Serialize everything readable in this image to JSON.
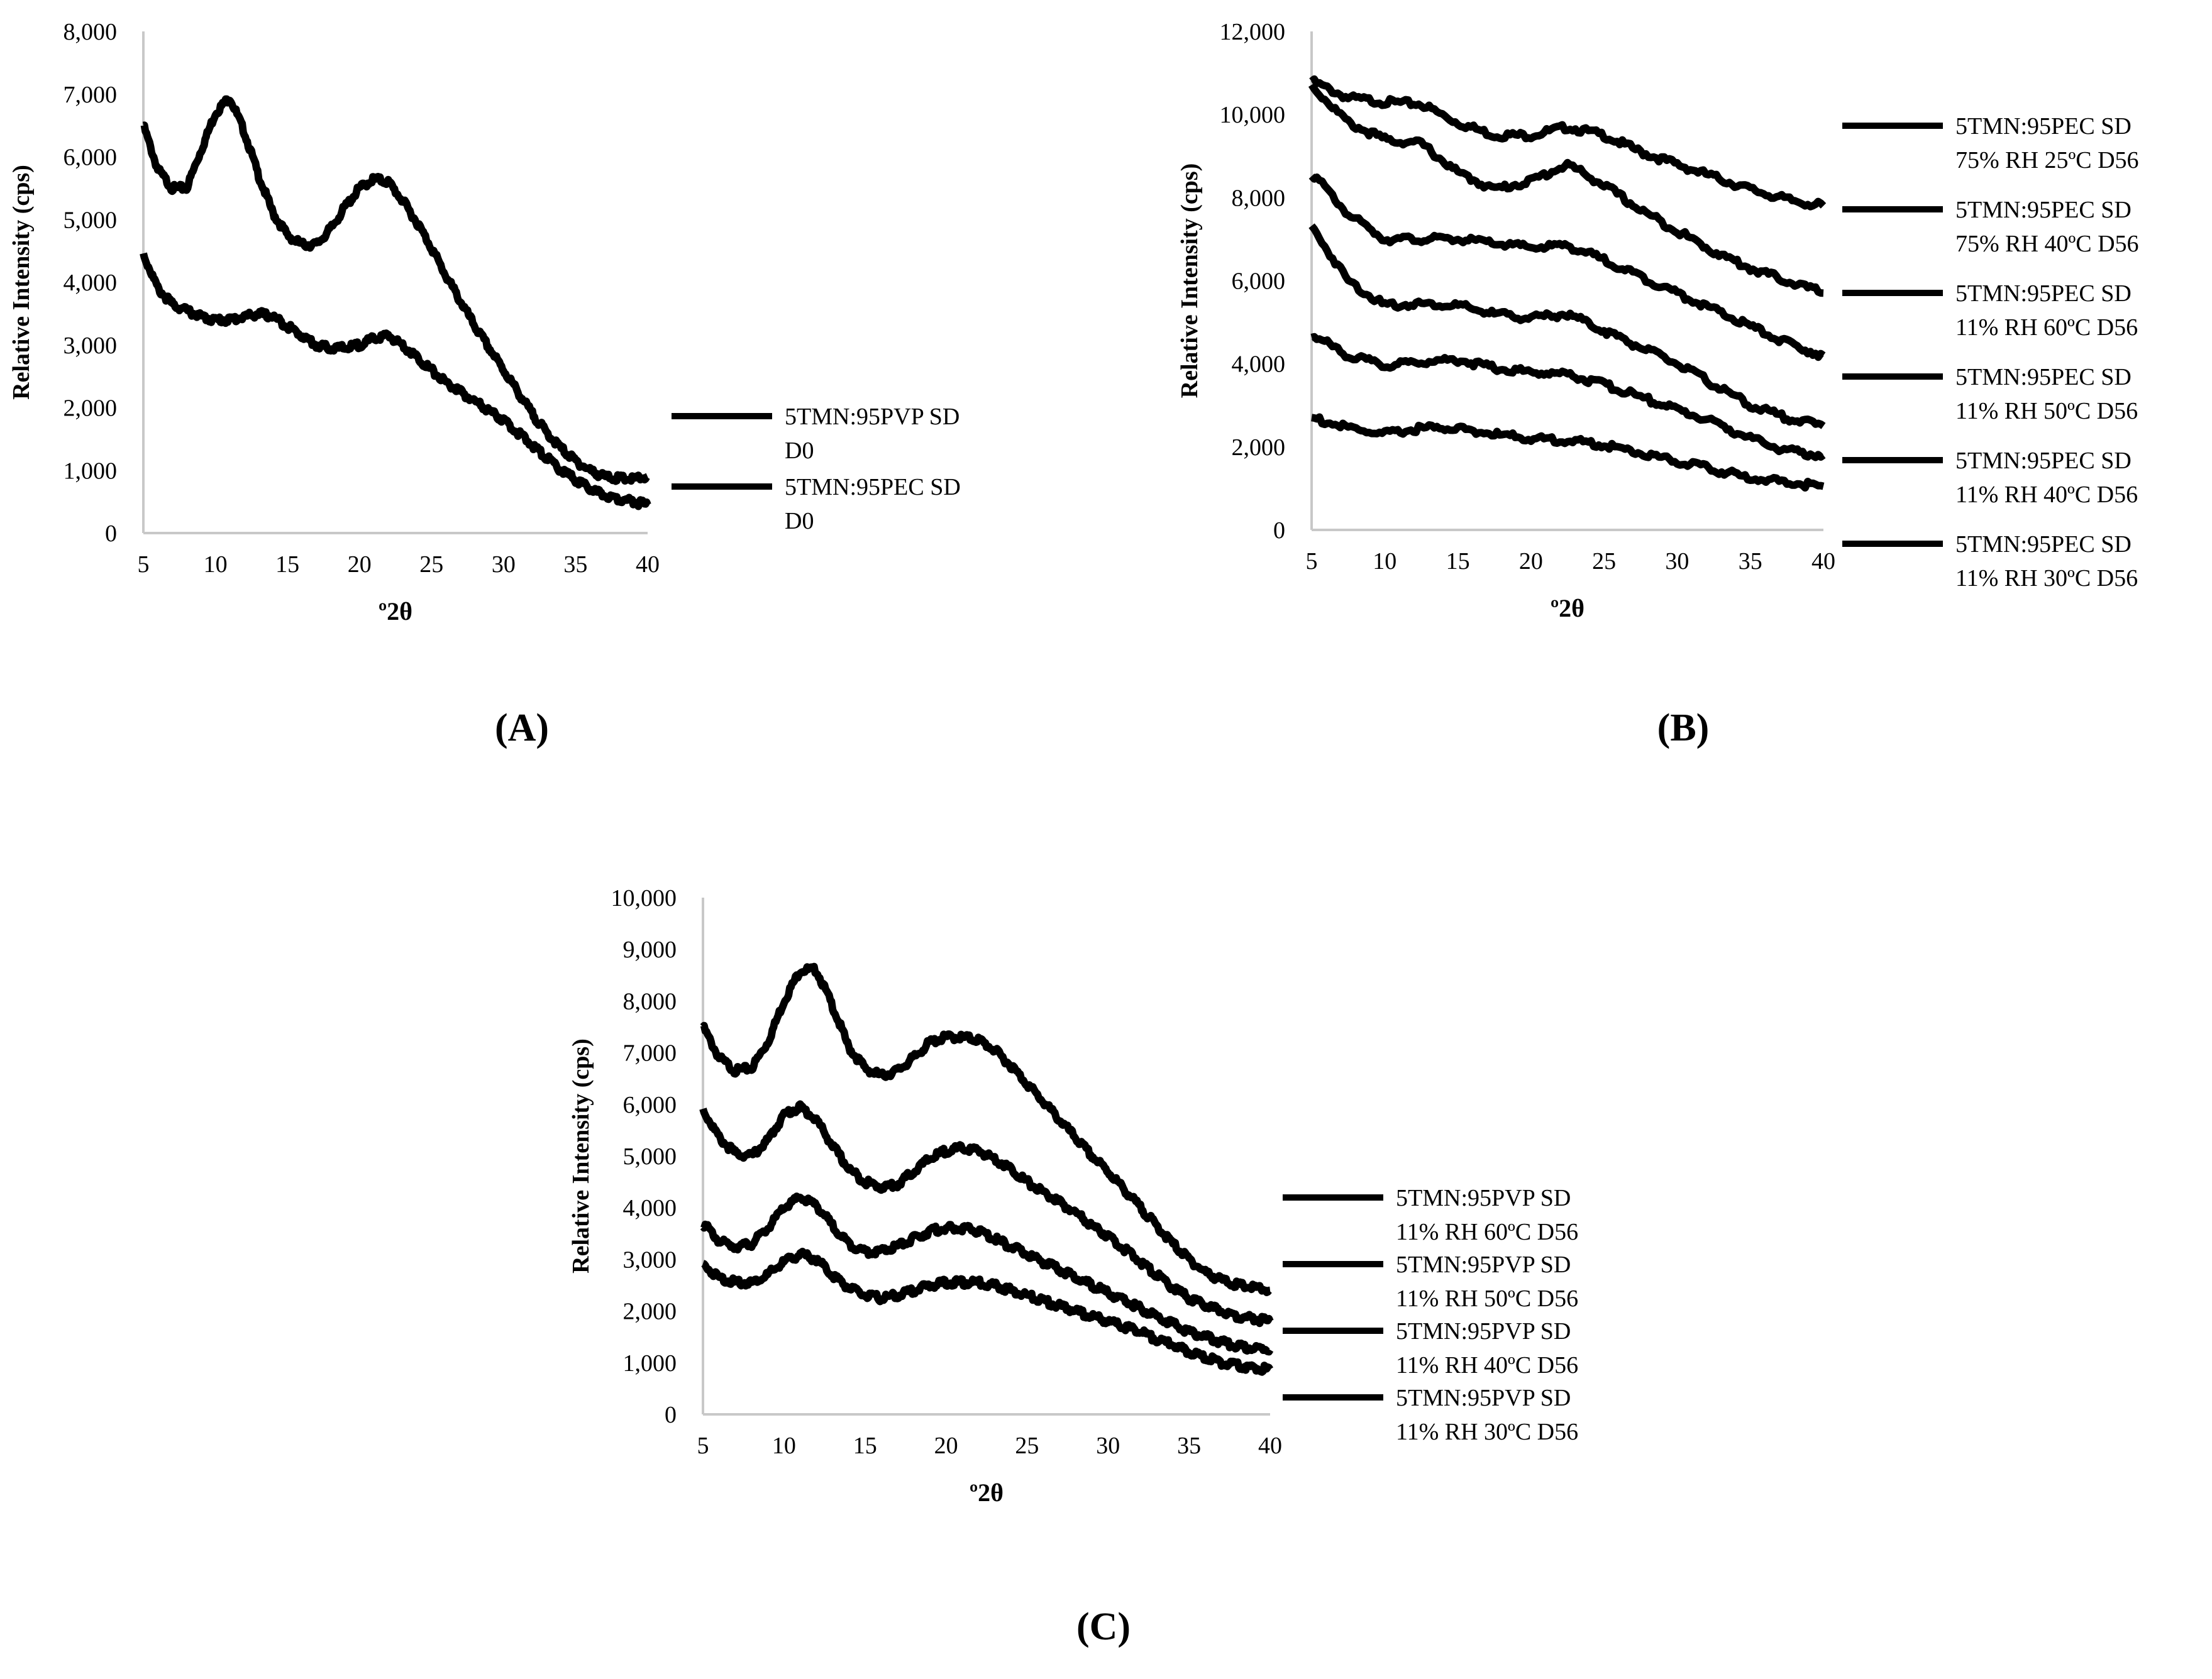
{
  "chart_data": [
    {
      "id": "A",
      "panel_label": "(A)",
      "type": "line",
      "xlabel": "º2θ",
      "ylabel": "Relative Intensity (cps)",
      "xlim": [
        5,
        40
      ],
      "ylim": [
        0,
        8000
      ],
      "xticks": [
        "5",
        "10",
        "15",
        "20",
        "25",
        "30",
        "35",
        "40"
      ],
      "yticks": [
        "0",
        "1,000",
        "2,000",
        "3,000",
        "4,000",
        "5,000",
        "6,000",
        "7,000",
        "8,000"
      ],
      "legend_position": "right",
      "series": [
        {
          "legend": [
            "5TMN:95PVP SD",
            "D0"
          ],
          "x": [
            5,
            6,
            7,
            8,
            9,
            10,
            11,
            12,
            13,
            14,
            15,
            16,
            17,
            18,
            19,
            20,
            21,
            22,
            23,
            24,
            25,
            26,
            27,
            28,
            29,
            30,
            31,
            32,
            33,
            34,
            35,
            36,
            37,
            38,
            39,
            40
          ],
          "values": [
            6500,
            5800,
            5500,
            5500,
            6100,
            6700,
            6950,
            6400,
            5700,
            5100,
            4750,
            4600,
            4600,
            4850,
            5200,
            5500,
            5650,
            5600,
            5300,
            4950,
            4550,
            4100,
            3700,
            3300,
            2950,
            2600,
            2250,
            1900,
            1600,
            1350,
            1150,
            1000,
            900,
            870,
            860,
            900
          ]
        },
        {
          "legend": [
            "5TMN:95PEC SD",
            "D0"
          ],
          "x": [
            5,
            6,
            7,
            8,
            9,
            10,
            11,
            12,
            13,
            14,
            15,
            16,
            17,
            18,
            19,
            20,
            21,
            22,
            23,
            24,
            25,
            26,
            27,
            28,
            29,
            30,
            31,
            32,
            33,
            34,
            35,
            36,
            37,
            38,
            39,
            40
          ],
          "values": [
            4450,
            3900,
            3650,
            3550,
            3450,
            3400,
            3400,
            3450,
            3500,
            3450,
            3300,
            3150,
            3000,
            2950,
            2950,
            3000,
            3100,
            3150,
            3000,
            2800,
            2600,
            2400,
            2250,
            2100,
            1950,
            1800,
            1600,
            1400,
            1200,
            1000,
            850,
            700,
            600,
            550,
            500,
            450
          ]
        }
      ]
    },
    {
      "id": "B",
      "panel_label": "(B)",
      "type": "line",
      "xlabel": "º2θ",
      "ylabel": "Relative Intensity (cps)",
      "xlim": [
        5,
        40
      ],
      "ylim": [
        0,
        12000
      ],
      "xticks": [
        "5",
        "10",
        "15",
        "20",
        "25",
        "30",
        "35",
        "40"
      ],
      "yticks": [
        "0",
        "2,000",
        "4,000",
        "6,000",
        "8,000",
        "10,000",
        "12,000"
      ],
      "legend_position": "right",
      "series": [
        {
          "legend": [
            "5TMN:95PEC SD",
            "75% RH 25ºC D56"
          ],
          "x": [
            5,
            7.5,
            10,
            12.5,
            15,
            17.5,
            20,
            22.5,
            25,
            27.5,
            30,
            32.5,
            35,
            37.5,
            40
          ],
          "values": [
            10800,
            10400,
            10300,
            10250,
            9800,
            9500,
            9500,
            9700,
            9500,
            9100,
            8800,
            8500,
            8200,
            7950,
            7800
          ]
        },
        {
          "legend": [
            "5TMN:95PEC SD",
            "75% RH 40ºC D56"
          ],
          "x": [
            5,
            7.5,
            10,
            12.5,
            15,
            17.5,
            20,
            22.5,
            25,
            27.5,
            30,
            32.5,
            35,
            37.5,
            40
          ],
          "values": [
            10700,
            9800,
            9400,
            9300,
            8600,
            8200,
            8400,
            8800,
            8300,
            7700,
            7200,
            6700,
            6300,
            6000,
            5700
          ]
        },
        {
          "legend": [
            "5TMN:95PEC SD",
            "11% RH 60ºC D56"
          ],
          "x": [
            5,
            7.5,
            10,
            12.5,
            15,
            17.5,
            20,
            22.5,
            25,
            27.5,
            30,
            32.5,
            35,
            37.5,
            40
          ],
          "values": [
            8600,
            7600,
            7000,
            7000,
            7000,
            6900,
            6800,
            6850,
            6500,
            6100,
            5700,
            5300,
            4900,
            4500,
            4200
          ]
        },
        {
          "legend": [
            "5TMN:95PEC SD",
            "11% RH 50ºC D56"
          ],
          "x": [
            5,
            7.5,
            10,
            12.5,
            15,
            17.5,
            20,
            22.5,
            25,
            27.5,
            30,
            32.5,
            35,
            37.5,
            40
          ],
          "values": [
            7300,
            6000,
            5400,
            5450,
            5400,
            5200,
            5100,
            5200,
            4800,
            4400,
            4000,
            3500,
            3000,
            2700,
            2500
          ]
        },
        {
          "legend": [
            "5TMN:95PEC SD",
            "11% RH 40ºC D56"
          ],
          "x": [
            5,
            7.5,
            10,
            12.5,
            15,
            17.5,
            20,
            22.5,
            25,
            27.5,
            30,
            32.5,
            35,
            37.5,
            40
          ],
          "values": [
            4700,
            4200,
            3950,
            4050,
            4100,
            3900,
            3800,
            3750,
            3500,
            3200,
            2900,
            2600,
            2200,
            1900,
            1800
          ]
        },
        {
          "legend": [
            "5TMN:95PEC SD",
            "11% RH 30ºC D56"
          ],
          "x": [
            5,
            7.5,
            10,
            12.5,
            15,
            17.5,
            20,
            22.5,
            25,
            27.5,
            30,
            32.5,
            35,
            37.5,
            40
          ],
          "values": [
            2700,
            2450,
            2300,
            2450,
            2450,
            2300,
            2200,
            2150,
            2050,
            1850,
            1650,
            1450,
            1250,
            1150,
            1050
          ]
        }
      ]
    },
    {
      "id": "C",
      "panel_label": "(C)",
      "type": "line",
      "xlabel": "º2θ",
      "ylabel": "Relative Intensity (cps)",
      "xlim": [
        5,
        40
      ],
      "ylim": [
        0,
        10000
      ],
      "xticks": [
        "5",
        "10",
        "15",
        "20",
        "25",
        "30",
        "35",
        "40"
      ],
      "yticks": [
        "0",
        "1,000",
        "2,000",
        "3,000",
        "4,000",
        "5,000",
        "6,000",
        "7,000",
        "8,000",
        "9,000",
        "10,000"
      ],
      "legend_position": "right",
      "series": [
        {
          "legend": [
            "5TMN:95PVP SD",
            "11% RH 60ºC D56"
          ],
          "x": [
            5,
            6,
            7,
            8,
            9,
            10,
            11,
            12,
            13,
            14,
            15,
            16,
            17,
            18,
            19,
            20,
            21,
            22,
            23,
            24,
            25,
            26,
            27,
            28,
            29,
            30,
            31,
            32,
            33,
            34,
            35,
            36,
            37,
            38,
            39,
            40
          ],
          "values": [
            7500,
            6900,
            6650,
            6700,
            7200,
            8000,
            8600,
            8600,
            7900,
            7100,
            6700,
            6550,
            6650,
            6900,
            7200,
            7300,
            7300,
            7250,
            7050,
            6750,
            6400,
            6050,
            5700,
            5350,
            5000,
            4700,
            4350,
            4000,
            3650,
            3300,
            3000,
            2750,
            2600,
            2500,
            2450,
            2400
          ]
        },
        {
          "legend": [
            "5TMN:95PVP SD",
            "11% RH 50ºC D56"
          ],
          "x": [
            5,
            6,
            7,
            8,
            9,
            10,
            11,
            12,
            13,
            14,
            15,
            16,
            17,
            18,
            19,
            20,
            21,
            22,
            23,
            24,
            25,
            26,
            27,
            28,
            29,
            30,
            31,
            32,
            33,
            34,
            35,
            36,
            37,
            38,
            39,
            40
          ],
          "values": [
            5900,
            5350,
            5050,
            5000,
            5300,
            5800,
            5950,
            5700,
            5200,
            4750,
            4500,
            4400,
            4450,
            4700,
            4950,
            5100,
            5150,
            5100,
            4950,
            4750,
            4500,
            4300,
            4100,
            3900,
            3650,
            3450,
            3200,
            2950,
            2700,
            2450,
            2250,
            2100,
            2000,
            1900,
            1850,
            1800
          ]
        },
        {
          "legend": [
            "5TMN:95PVP SD",
            "11% RH 40ºC D56"
          ],
          "x": [
            5,
            6,
            7,
            8,
            9,
            10,
            11,
            12,
            13,
            14,
            15,
            16,
            17,
            18,
            19,
            20,
            21,
            22,
            23,
            24,
            25,
            26,
            27,
            28,
            29,
            30,
            31,
            32,
            33,
            34,
            35,
            36,
            37,
            38,
            39,
            40
          ],
          "values": [
            3700,
            3350,
            3250,
            3300,
            3600,
            4000,
            4200,
            4050,
            3650,
            3300,
            3150,
            3150,
            3250,
            3400,
            3550,
            3600,
            3600,
            3550,
            3400,
            3250,
            3100,
            2950,
            2800,
            2650,
            2500,
            2350,
            2200,
            2050,
            1900,
            1750,
            1600,
            1500,
            1400,
            1320,
            1280,
            1250
          ]
        },
        {
          "legend": [
            "5TMN:95PVP SD",
            "11% RH 30ºC D56"
          ],
          "x": [
            5,
            6,
            7,
            8,
            9,
            10,
            11,
            12,
            13,
            14,
            15,
            16,
            17,
            18,
            19,
            20,
            21,
            22,
            23,
            24,
            25,
            26,
            27,
            28,
            29,
            30,
            31,
            32,
            33,
            34,
            35,
            36,
            37,
            38,
            39,
            40
          ],
          "values": [
            2900,
            2650,
            2550,
            2550,
            2700,
            2950,
            3100,
            3000,
            2700,
            2450,
            2300,
            2250,
            2300,
            2400,
            2500,
            2550,
            2550,
            2550,
            2500,
            2400,
            2300,
            2200,
            2100,
            2000,
            1900,
            1800,
            1700,
            1600,
            1450,
            1350,
            1200,
            1100,
            1000,
            950,
            900,
            870
          ]
        }
      ]
    }
  ]
}
